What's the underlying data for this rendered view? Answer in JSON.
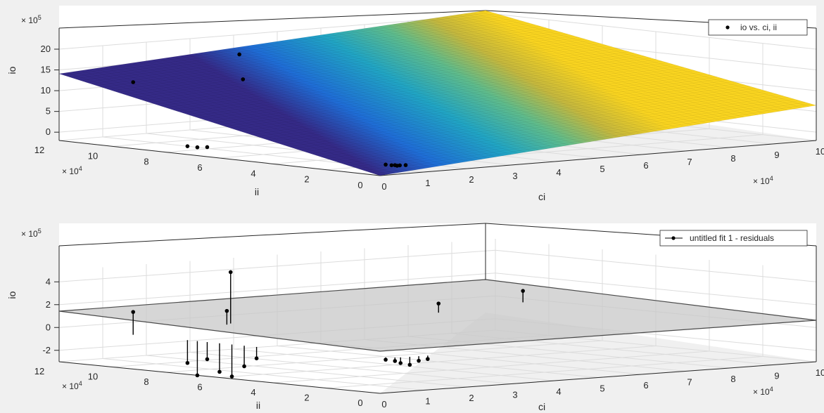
{
  "chart_data": [
    {
      "type": "scatter",
      "surface": "fitted plane, parula colormap",
      "xlabel": "ci",
      "ylabel": "ii",
      "zlabel": "io",
      "x_exponent": "× 10^4",
      "y_exponent": "× 10^4",
      "z_exponent": "× 10^5",
      "xlim": [
        0,
        100000
      ],
      "ylim": [
        0,
        130000
      ],
      "zlim": [
        -2,
        20
      ],
      "x_ticks": [
        "0",
        "1",
        "2",
        "3",
        "4",
        "5",
        "6",
        "7",
        "8",
        "9",
        "10"
      ],
      "y_ticks": [
        "0",
        "2",
        "4",
        "6",
        "8",
        "10",
        "12"
      ],
      "z_ticks": [
        "0",
        "5",
        "10",
        "15",
        "20"
      ],
      "grid": true,
      "legend": {
        "position": "top-right",
        "entries": [
          "io vs. ci, ii"
        ]
      },
      "series": [
        {
          "name": "io vs. ci, ii",
          "points": [
            {
              "ci": 0,
              "ii": 100000,
              "io": 14
            },
            {
              "ci": 30000,
              "ii": 110000,
              "io": 17.5
            },
            {
              "ci": 28000,
              "ii": 105000,
              "io": 12
            },
            {
              "ci": 0,
              "ii": 78000,
              "io": 0
            },
            {
              "ci": 0,
              "ii": 74000,
              "io": 0
            },
            {
              "ci": 0,
              "ii": 70000,
              "io": 0.3
            },
            {
              "ci": 3000,
              "ii": 3000,
              "io": 0.2
            },
            {
              "ci": 4000,
              "ii": 1000,
              "io": 0.1
            },
            {
              "ci": 3500,
              "ii": 1500,
              "io": 0.1
            },
            {
              "ci": 4200,
              "ii": 500,
              "io": 0
            },
            {
              "ci": 5000,
              "ii": 800,
              "io": 0
            },
            {
              "ci": 6000,
              "ii": 200,
              "io": 0
            }
          ]
        }
      ]
    },
    {
      "type": "scatter",
      "surface": "zero plane (residuals)",
      "xlabel": "ci",
      "ylabel": "ii",
      "zlabel": "io",
      "x_exponent": "× 10^4",
      "y_exponent": "× 10^4",
      "z_exponent": "× 10^5",
      "xlim": [
        0,
        100000
      ],
      "ylim": [
        0,
        130000
      ],
      "zlim": [
        -3,
        5
      ],
      "x_ticks": [
        "0",
        "1",
        "2",
        "3",
        "4",
        "5",
        "6",
        "7",
        "8",
        "9",
        "10"
      ],
      "y_ticks": [
        "0",
        "2",
        "4",
        "6",
        "8",
        "10",
        "12"
      ],
      "z_ticks": [
        "-2",
        "0",
        "2",
        "4"
      ],
      "grid": true,
      "legend": {
        "position": "top-right",
        "entries": [
          "untitled fit 1 - residuals"
        ]
      },
      "series": [
        {
          "name": "untitled fit 1 - residuals",
          "points": [
            {
              "ci": 0,
              "ii": 100000,
              "io": 2
            },
            {
              "ci": 28000,
              "ii": 110000,
              "io": 4.5
            },
            {
              "ci": 26000,
              "ii": 108000,
              "io": 1.2
            },
            {
              "ci": 95000,
              "ii": 110000,
              "io": 1
            },
            {
              "ci": 70000,
              "ii": 100000,
              "io": 0.8
            },
            {
              "ci": 0,
              "ii": 78000,
              "io": -2
            },
            {
              "ci": 0,
              "ii": 74000,
              "io": -3
            },
            {
              "ci": 0,
              "ii": 70000,
              "io": -1.5
            },
            {
              "ci": 0,
              "ii": 65000,
              "io": -2.5
            },
            {
              "ci": 0,
              "ii": 60000,
              "io": -2.8
            },
            {
              "ci": 0,
              "ii": 55000,
              "io": -1.8
            },
            {
              "ci": 0,
              "ii": 50000,
              "io": -1
            },
            {
              "ci": 3000,
              "ii": 3000,
              "io": -0.2
            },
            {
              "ci": 4000,
              "ii": 1000,
              "io": -0.3
            },
            {
              "ci": 5000,
              "ii": 500,
              "io": -0.5
            },
            {
              "ci": 7000,
              "ii": 300,
              "io": -0.7
            },
            {
              "ci": 9000,
              "ii": 200,
              "io": -0.4
            },
            {
              "ci": 11000,
              "ii": 100,
              "io": -0.3
            }
          ]
        }
      ]
    }
  ],
  "colors": {
    "background": "#f0f0f0",
    "axes_bg": "#ffffff",
    "grid": "#dcdcdc",
    "axis_line": "#262626",
    "marker": "#000000",
    "parula_low": "#352a87",
    "parula_mid": "#21a5c4",
    "parula_green": "#5fbc8c",
    "parula_high": "#f9d420",
    "residual_plane": "#c8c8c8"
  }
}
